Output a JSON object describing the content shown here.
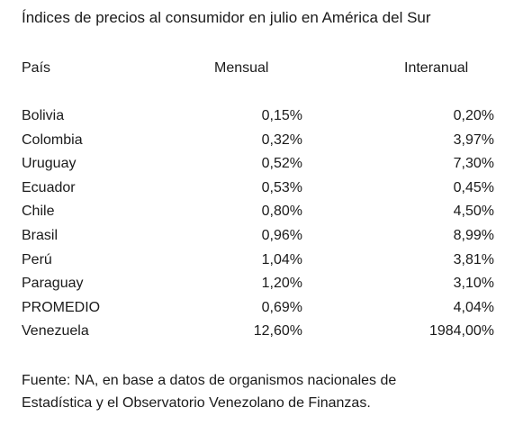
{
  "title": "Índices de precios al consumidor en julio en América del Sur",
  "headers": {
    "country": "País",
    "monthly": "Mensual",
    "annual": "Interanual"
  },
  "rows": [
    {
      "country": "Bolivia",
      "monthly": "0,15%",
      "annual": "0,20%"
    },
    {
      "country": "Colombia",
      "monthly": "0,32%",
      "annual": "3,97%"
    },
    {
      "country": "Uruguay",
      "monthly": "0,52%",
      "annual": "7,30%"
    },
    {
      "country": "Ecuador",
      "monthly": "0,53%",
      "annual": "0,45%"
    },
    {
      "country": "Chile",
      "monthly": "0,80%",
      "annual": "4,50%"
    },
    {
      "country": "Brasil",
      "monthly": "0,96%",
      "annual": "8,99%"
    },
    {
      "country": "Perú",
      "monthly": "1,04%",
      "annual": "3,81%"
    },
    {
      "country": "Paraguay",
      "monthly": "1,20%",
      "annual": "3,10%"
    },
    {
      "country": "PROMEDIO",
      "monthly": "0,69%",
      "annual": "4,04%"
    },
    {
      "country": "Venezuela",
      "monthly": "12,60%",
      "annual": "1984,00%"
    }
  ],
  "footer": {
    "line1": "Fuente: NA, en base a datos de organismos nacionales de",
    "line2": "Estadística y el Observatorio Venezolano de Finanzas."
  }
}
